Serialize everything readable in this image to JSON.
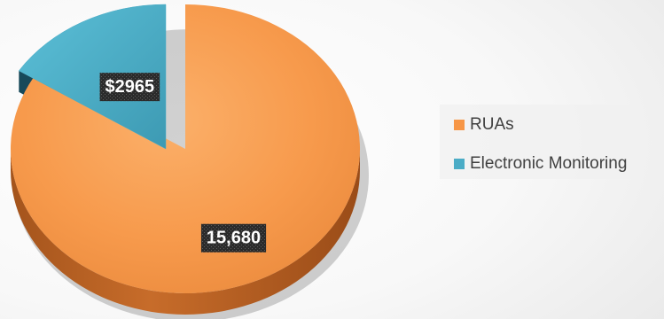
{
  "chart_data": {
    "type": "pie",
    "style": "3d-exploded",
    "categories": [
      "RUAs",
      "Electronic Monitoring"
    ],
    "values": [
      15680,
      2965
    ],
    "data_labels": [
      "15,680",
      "$2965"
    ],
    "colors": [
      "#F79646",
      "#4BACC6"
    ],
    "title": "",
    "legend": {
      "position": "right",
      "entries": [
        "RUAs",
        "Electronic Monitoring"
      ]
    }
  }
}
